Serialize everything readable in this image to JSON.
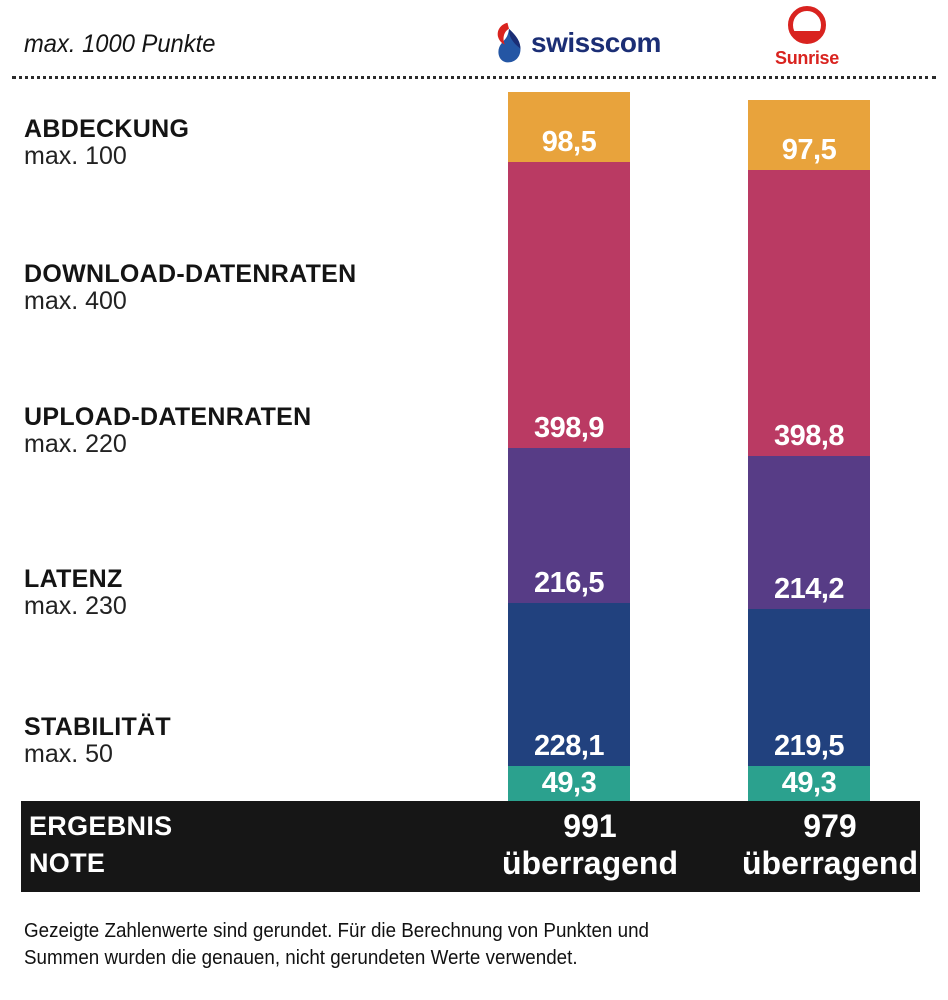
{
  "header": {
    "title": "max. 1000 Punkte",
    "providers": [
      {
        "name": "Swisscom",
        "wordmark": "swisscom",
        "brand_color": "#1B2E75"
      },
      {
        "name": "Sunrise",
        "wordmark": "Sunrise",
        "brand_color": "#D9231F"
      }
    ]
  },
  "categories": [
    {
      "label": "ABDECKUNG",
      "max_label": "max. 100",
      "max": 100,
      "color": "#E8A33C"
    },
    {
      "label": "DOWNLOAD-DATENRATEN",
      "max_label": "max. 400",
      "max": 400,
      "color": "#BA3A63"
    },
    {
      "label": "UPLOAD-DATENRATEN",
      "max_label": "max. 220",
      "max": 220,
      "color": "#573C86"
    },
    {
      "label": "LATENZ",
      "max_label": "max. 230",
      "max": 230,
      "color": "#21417E"
    },
    {
      "label": "STABILITÄT",
      "max_label": "max. 50",
      "max": 50,
      "color": "#2BA18E"
    }
  ],
  "chart_data": {
    "type": "bar",
    "subtype": "stacked-vertical",
    "title": "max. 1000 Punkte",
    "categories": [
      "Abdeckung (max. 100)",
      "Download-Datenraten (max. 400)",
      "Upload-Datenraten (max. 220)",
      "Latenz (max. 230)",
      "Stabilität (max. 50)"
    ],
    "segment_colors": [
      "#E8A33C",
      "#BA3A63",
      "#573C86",
      "#21417E",
      "#2BA18E"
    ],
    "series": [
      {
        "name": "Swisscom",
        "values": [
          98.5,
          398.9,
          216.5,
          228.1,
          49.3
        ],
        "total": 991,
        "grade": "überragend"
      },
      {
        "name": "Sunrise",
        "values": [
          97.5,
          398.8,
          214.2,
          219.5,
          49.3
        ],
        "total": 979,
        "grade": "überragend"
      }
    ],
    "value_label_format": "decimal-comma",
    "ylim": [
      0,
      1000
    ],
    "grid": false,
    "legend_position": "none"
  },
  "result": {
    "left_line1": "ERGEBNIS",
    "left_line2": "NOTE",
    "columns": [
      {
        "points": "991",
        "grade": "überragend"
      },
      {
        "points": "979",
        "grade": "überragend"
      }
    ]
  },
  "footnote": "Gezeigte Zahlenwerte sind gerundet. Für die Berechnung von Punkten und Summen wurden die genauen, nicht gerundeten Werte verwendet."
}
